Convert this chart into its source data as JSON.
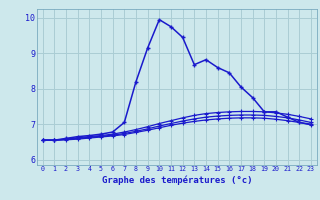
{
  "xlabel": "Graphe des températures (°c)",
  "x_ticks": [
    0,
    1,
    2,
    3,
    4,
    5,
    6,
    7,
    8,
    9,
    10,
    11,
    12,
    13,
    14,
    15,
    16,
    17,
    18,
    19,
    20,
    21,
    22,
    23
  ],
  "y_ticks": [
    6,
    7,
    8,
    9,
    10
  ],
  "ylim": [
    5.85,
    10.25
  ],
  "xlim": [
    -0.5,
    23.5
  ],
  "bg_color": "#cde8ec",
  "grid_color": "#aacdd4",
  "line_color": "#1a1acc",
  "main_line": [
    6.55,
    6.55,
    6.6,
    6.65,
    6.68,
    6.72,
    6.78,
    7.05,
    8.2,
    9.15,
    9.95,
    9.75,
    9.45,
    8.68,
    8.82,
    8.6,
    8.45,
    8.05,
    7.75,
    7.35,
    7.35,
    7.2,
    7.05,
    7.0
  ],
  "line2": [
    6.55,
    6.55,
    6.58,
    6.62,
    6.65,
    6.68,
    6.72,
    6.78,
    6.85,
    6.93,
    7.02,
    7.1,
    7.18,
    7.25,
    7.3,
    7.33,
    7.35,
    7.36,
    7.36,
    7.35,
    7.32,
    7.28,
    7.22,
    7.15
  ],
  "line3": [
    6.55,
    6.55,
    6.57,
    6.6,
    6.63,
    6.66,
    6.69,
    6.74,
    6.8,
    6.87,
    6.95,
    7.02,
    7.09,
    7.15,
    7.2,
    7.23,
    7.25,
    7.26,
    7.26,
    7.25,
    7.22,
    7.18,
    7.12,
    7.05
  ],
  "line4": [
    6.55,
    6.55,
    6.56,
    6.58,
    6.61,
    6.64,
    6.67,
    6.71,
    6.77,
    6.83,
    6.9,
    6.97,
    7.03,
    7.08,
    7.12,
    7.15,
    7.17,
    7.18,
    7.18,
    7.17,
    7.14,
    7.1,
    7.05,
    6.98
  ],
  "xlabel_fontsize": 6.5,
  "tick_fontsize_x": 4.8,
  "tick_fontsize_y": 6.0
}
